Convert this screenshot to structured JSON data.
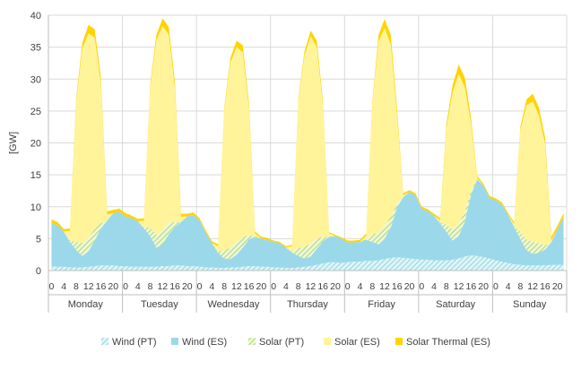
{
  "chart_data": {
    "type": "area",
    "stacked": true,
    "ylabel": "[GW]",
    "ylim": [
      0,
      40
    ],
    "yticks": [
      0,
      5,
      10,
      15,
      20,
      25,
      30,
      35,
      40
    ],
    "grid": true,
    "legend_position": "bottom",
    "days": [
      "Monday",
      "Tuesday",
      "Wednesday",
      "Thursday",
      "Friday",
      "Saturday",
      "Sunday"
    ],
    "hour_ticks": [
      "0",
      "4",
      "8",
      "12",
      "16",
      "20"
    ],
    "hour_step": 2,
    "series": [
      {
        "name": "Wind (PT)",
        "color": "#a8e0e8",
        "values": [
          [
            0.7,
            0.6,
            0.6,
            0.5,
            0.5,
            0.5,
            0.6,
            0.7,
            0.8,
            0.8,
            0.8,
            0.7
          ],
          [
            0.7,
            0.6,
            0.6,
            0.6,
            0.6,
            0.6,
            0.7,
            0.7,
            0.8,
            0.8,
            0.7,
            0.7
          ],
          [
            0.6,
            0.5,
            0.5,
            0.4,
            0.4,
            0.5,
            0.5,
            0.6,
            0.7,
            0.7,
            0.6,
            0.6
          ],
          [
            0.5,
            0.5,
            0.4,
            0.4,
            0.5,
            0.6,
            0.7,
            0.9,
            1.1,
            1.3,
            1.3,
            1.2
          ],
          [
            1.3,
            1.4,
            1.4,
            1.5,
            1.5,
            1.6,
            1.8,
            2.0,
            2.1,
            2.0,
            1.9,
            1.8
          ],
          [
            1.7,
            1.7,
            1.6,
            1.6,
            1.6,
            1.7,
            1.9,
            2.2,
            2.4,
            2.3,
            2.1,
            1.9
          ],
          [
            1.6,
            1.4,
            1.2,
            1.0,
            0.9,
            0.8,
            0.8,
            0.8,
            0.8,
            0.9,
            0.9,
            0.9
          ]
        ]
      },
      {
        "name": "Wind (ES)",
        "color": "#9bd9ea",
        "values": [
          [
            6.7,
            6.5,
            5.5,
            4.0,
            2.7,
            1.8,
            2.4,
            4.0,
            5.8,
            7.0,
            8.2,
            8.5
          ],
          [
            7.8,
            7.6,
            7.1,
            6.0,
            4.8,
            3.0,
            3.4,
            5.0,
            6.0,
            6.8,
            7.8,
            8.0
          ],
          [
            7.3,
            5.5,
            3.8,
            2.4,
            1.5,
            1.3,
            2.0,
            3.0,
            4.2,
            4.6,
            4.4,
            4.2
          ],
          [
            4.0,
            3.8,
            3.2,
            2.4,
            1.8,
            1.3,
            1.5,
            2.5,
            3.5,
            4.0,
            4.1,
            3.8
          ],
          [
            3.1,
            3.0,
            3.1,
            3.3,
            3.0,
            2.5,
            3.2,
            4.8,
            7.8,
            9.5,
            10.4,
            10.0
          ],
          [
            8.0,
            7.6,
            7.0,
            5.8,
            4.5,
            3.0,
            3.5,
            5.5,
            9.5,
            12.0,
            11.2,
            9.5
          ],
          [
            9.4,
            9.0,
            7.5,
            5.8,
            4.0,
            2.4,
            1.8,
            2.0,
            2.5,
            3.5,
            5.5,
            7.5
          ]
        ]
      },
      {
        "name": "Solar (PT)",
        "color": "#c8e6a0",
        "values": [
          [
            0,
            0,
            0,
            0.2,
            1.3,
            2.0,
            2.2,
            1.8,
            0.8,
            0,
            0,
            0
          ],
          [
            0,
            0,
            0,
            0.2,
            1.3,
            2.0,
            2.2,
            1.8,
            0.8,
            0,
            0,
            0
          ],
          [
            0,
            0,
            0,
            0.2,
            1.2,
            1.8,
            2.0,
            1.6,
            0.7,
            0,
            0,
            0
          ],
          [
            0,
            0,
            0,
            0.2,
            1.2,
            1.8,
            2.0,
            1.6,
            0.7,
            0,
            0,
            0
          ],
          [
            0,
            0,
            0,
            0.2,
            1.2,
            1.8,
            2.0,
            1.6,
            0.6,
            0,
            0,
            0
          ],
          [
            0,
            0,
            0,
            0.2,
            1.1,
            1.7,
            1.9,
            1.5,
            0.6,
            0,
            0,
            0
          ],
          [
            0,
            0,
            0,
            0.2,
            1.1,
            1.7,
            1.9,
            1.5,
            0.6,
            0,
            0,
            0
          ]
        ]
      },
      {
        "name": "Solar (ES)",
        "color": "#fff49a",
        "values": [
          [
            0,
            0,
            0,
            1.5,
            22.0,
            30.5,
            32.0,
            30.0,
            22.0,
            1.0,
            0,
            0
          ],
          [
            0,
            0,
            0,
            1.0,
            22.0,
            30.5,
            32.0,
            29.5,
            21.0,
            0.8,
            0,
            0
          ],
          [
            0,
            0,
            0,
            0.8,
            22.0,
            29.0,
            30.5,
            29.0,
            20.0,
            0.5,
            0,
            0
          ],
          [
            0,
            0,
            0,
            0.8,
            23.0,
            30.0,
            32.5,
            30.0,
            20.5,
            0.5,
            0,
            0
          ],
          [
            0,
            0,
            0,
            0.5,
            20.0,
            30.0,
            31.0,
            27.0,
            14.0,
            0.3,
            0,
            0
          ],
          [
            0,
            0,
            0,
            0.3,
            15.0,
            21.5,
            23.5,
            19.5,
            10.5,
            0.2,
            0,
            0
          ],
          [
            0,
            0,
            0,
            0.3,
            16.0,
            21.0,
            22.0,
            20.0,
            16.0,
            0.3,
            0,
            0
          ]
        ]
      },
      {
        "name": "Solar Thermal (ES)",
        "color": "#ffd400",
        "values": [
          [
            0.6,
            0.5,
            0.4,
            0.4,
            0.5,
            0.9,
            1.3,
            1.3,
            1.0,
            0.5,
            0.5,
            0.5
          ],
          [
            0.5,
            0.4,
            0.4,
            0.4,
            0.5,
            0.8,
            1.2,
            1.2,
            1.0,
            0.5,
            0.4,
            0.4
          ],
          [
            0.3,
            0.3,
            0.3,
            0.3,
            0.4,
            0.7,
            1.0,
            1.1,
            0.8,
            0.3,
            0.3,
            0.3
          ],
          [
            0.2,
            0.2,
            0.2,
            0.2,
            0.4,
            0.6,
            0.9,
            1.0,
            0.7,
            0.2,
            0.2,
            0.2
          ],
          [
            0.3,
            0.3,
            0.3,
            0.3,
            0.5,
            1.0,
            1.4,
            1.5,
            1.0,
            0.3,
            0.3,
            0.3
          ],
          [
            0.3,
            0.3,
            0.3,
            0.3,
            0.7,
            1.1,
            1.5,
            1.5,
            0.9,
            0.3,
            0.3,
            0.3
          ],
          [
            0.3,
            0.3,
            0.3,
            0.3,
            0.5,
            0.9,
            1.2,
            1.2,
            1.0,
            0.6,
            0.6,
            0.6
          ]
        ]
      }
    ]
  }
}
